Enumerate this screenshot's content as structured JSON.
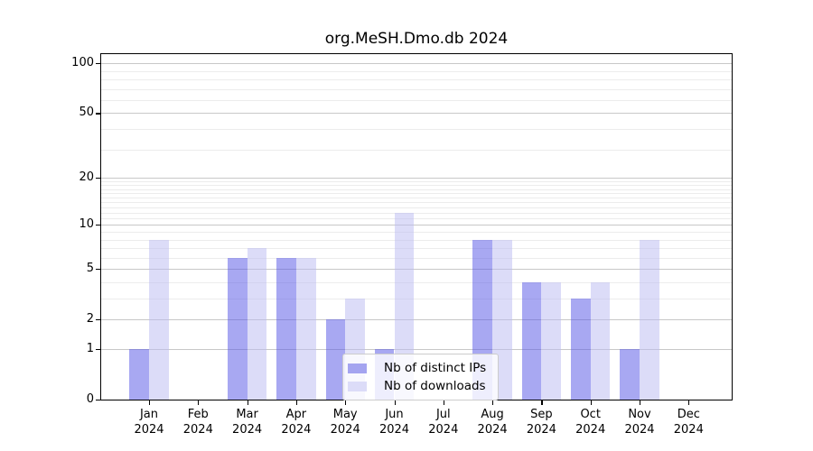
{
  "chart_data": {
    "type": "bar",
    "title": "org.MeSH.Dmo.db 2024",
    "categories": [
      "Jan",
      "Feb",
      "Mar",
      "Apr",
      "May",
      "Jun",
      "Jul",
      "Aug",
      "Sep",
      "Oct",
      "Nov",
      "Dec"
    ],
    "x_label_line2": "2024",
    "series": [
      {
        "name": "Nb of distinct IPs",
        "color": "#a4a4f0",
        "fill": "rgba(82,82,229,0.5)",
        "values": [
          1,
          0,
          6,
          6,
          2,
          1,
          0,
          8,
          4,
          3,
          1,
          0
        ]
      },
      {
        "name": "Nb of downloads",
        "color": "#dcdcf8",
        "fill": "rgba(185,185,241,0.5)",
        "values": [
          8,
          0,
          7,
          6,
          3,
          12,
          0,
          8,
          4,
          4,
          8,
          0
        ]
      }
    ],
    "yaxis": {
      "scale": "log10(1+x)",
      "major_ticks": [
        0,
        1,
        2,
        5,
        10,
        20,
        50,
        100
      ],
      "tick_labels": [
        "0",
        "1",
        "2",
        "5",
        "10",
        "20",
        "50",
        "100"
      ],
      "minor_ticks": [
        3,
        4,
        6,
        7,
        8,
        9,
        11,
        12,
        13,
        14,
        15,
        16,
        17,
        18,
        19,
        30,
        40,
        60,
        70,
        80,
        90
      ],
      "top_value": 116
    },
    "grid": {
      "major_color": "#c8c8c8",
      "minor_color": "#ececec",
      "visible": true
    },
    "legend": {
      "location": "lower center"
    }
  }
}
